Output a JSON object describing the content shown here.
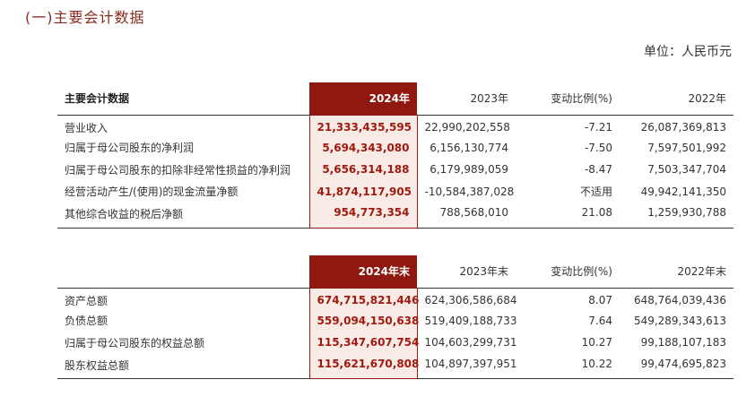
{
  "section_title": "(一)主要会计数据",
  "unit_label": "单位：人民币元",
  "table1": {
    "headers": [
      "主要会计数据",
      "2024年",
      "2023年",
      "变动比例(%)",
      "2022年"
    ],
    "rows": [
      [
        "营业收入",
        "21,333,435,595",
        "22,990,202,558",
        "-7.21",
        "26,087,369,813"
      ],
      [
        "归属于母公司股东的净利润",
        "5,694,343,080",
        "6,156,130,774",
        "-7.50",
        "7,597,501,992"
      ],
      [
        "归属于母公司股东的扣除非经常性损益的净利润",
        "5,656,314,188",
        "6,179,989,059",
        "-8.47",
        "7,503,347,704"
      ],
      [
        "经营活动产生/(使用)的现金流量净额",
        "41,874,117,905",
        "-10,584,387,028",
        "不适用",
        "49,942,141,350"
      ],
      [
        "其他综合收益的税后净额",
        "954,773,354",
        "788,568,010",
        "21.08",
        "1,259,930,788"
      ]
    ]
  },
  "table2": {
    "headers": [
      "",
      "2024年末",
      "2023年末",
      "变动比例(%)",
      "2022年末"
    ],
    "rows": [
      [
        "资产总额",
        "674,715,821,446",
        "624,306,586,684",
        "8.07",
        "648,764,039,436"
      ],
      [
        "负债总额",
        "559,094,150,638",
        "519,409,188,733",
        "7.64",
        "549,289,343,613"
      ],
      [
        "归属于母公司股东的权益总额",
        "115,347,607,754",
        "104,603,299,731",
        "10.27",
        "99,188,107,183"
      ],
      [
        "股东权益总额",
        "115,621,670,808",
        "104,897,397,951",
        "10.22",
        "99,474,695,823"
      ]
    ]
  }
}
